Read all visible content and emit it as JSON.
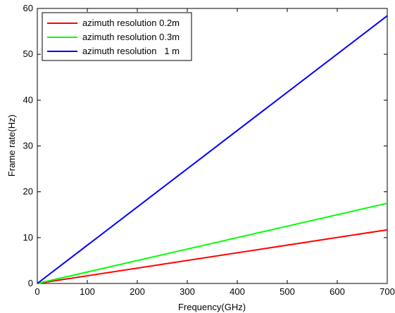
{
  "chart_data": {
    "type": "line",
    "title": "",
    "xlabel": "Frequency(GHz)",
    "ylabel": "Frame rate(Hz)",
    "xlim": [
      0,
      700
    ],
    "ylim": [
      0,
      60
    ],
    "xticks": [
      0,
      100,
      200,
      300,
      400,
      500,
      600,
      700
    ],
    "yticks": [
      0,
      10,
      20,
      30,
      40,
      50,
      60
    ],
    "grid": false,
    "legend_position": "top-left",
    "series": [
      {
        "name": "azimuth resolution 0.2m",
        "color": "#ff0000",
        "x": [
          0,
          700
        ],
        "y": [
          0,
          11.7
        ]
      },
      {
        "name": "azimuth resolution 0.3m",
        "color": "#00ff00",
        "x": [
          0,
          700
        ],
        "y": [
          0,
          17.5
        ]
      },
      {
        "name": "azimuth resolution   1 m",
        "color": "#0000ff",
        "x": [
          0,
          700
        ],
        "y": [
          0,
          58.4
        ]
      }
    ]
  }
}
